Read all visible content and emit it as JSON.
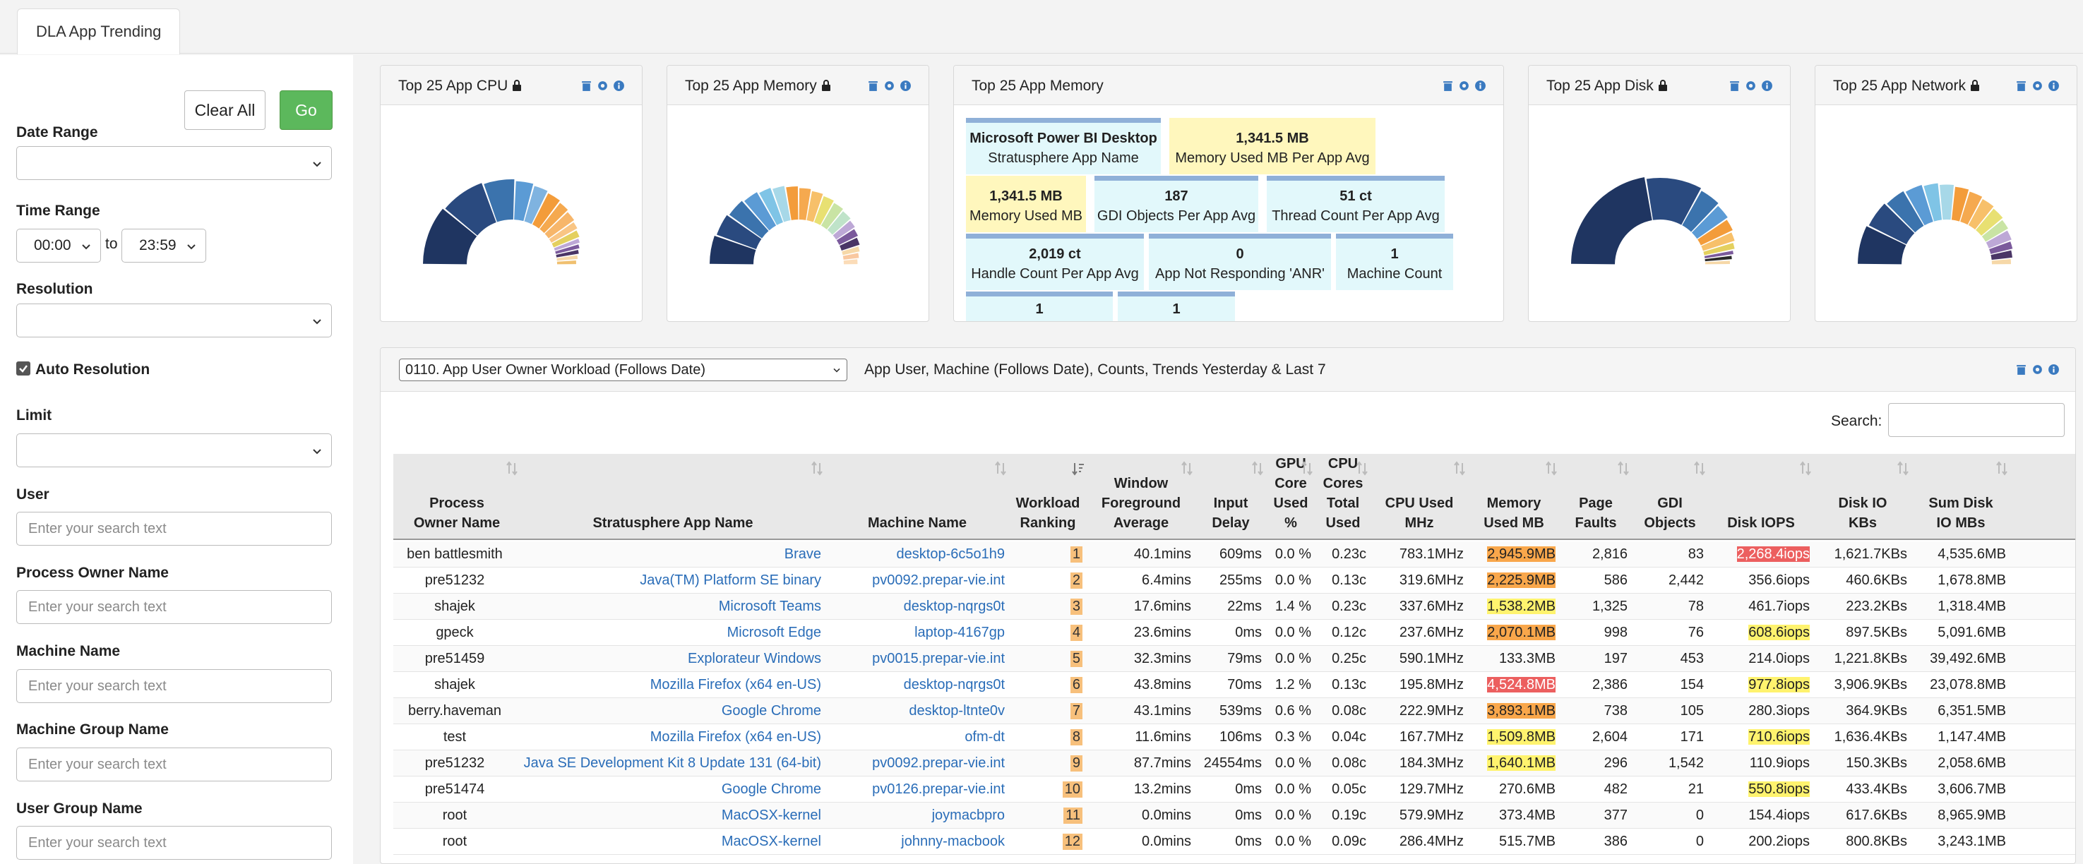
{
  "tab": {
    "label": "DLA App Trending"
  },
  "sidebar": {
    "clear_label": "Clear All",
    "go_label": "Go",
    "date_range_label": "Date Range",
    "time_range_label": "Time Range",
    "time_from": "00:00",
    "time_to_label": "to",
    "time_to": "23:59",
    "resolution_label": "Resolution",
    "auto_resolution_label": "Auto Resolution",
    "limit_label": "Limit",
    "user_label": "User",
    "process_owner_label": "Process Owner Name",
    "machine_name_label": "Machine Name",
    "machine_group_label": "Machine Group Name",
    "user_group_label": "User Group Name",
    "search_placeholder": "Enter your search text"
  },
  "widgets": {
    "cpu_title": "Top 25 App CPU",
    "memory_title": "Top 25 App Memory",
    "memory_card_title": "Top 25 App Memory",
    "disk_title": "Top 25 App Disk",
    "network_title": "Top 25 App Network"
  },
  "memory_card": {
    "app_value": "Microsoft Power BI Desktop",
    "app_label": "Stratusphere App Name",
    "mem_avg_value": "1,341.5 MB",
    "mem_avg_label": "Memory Used MB Per App Avg",
    "mem_value": "1,341.5 MB",
    "mem_label": "Memory Used MB",
    "gdi_value": "187",
    "gdi_label": "GDI Objects Per App Avg",
    "thread_value": "51 ct",
    "thread_label": "Thread Count Per App Avg",
    "handle_value": "2,019 ct",
    "handle_label": "Handle Count Per App Avg",
    "anr_value": "0",
    "anr_label": "App Not Responding 'ANR'",
    "machine_value": "1",
    "machine_label": "Machine Count",
    "extra1_value": "1",
    "extra2_value": "1"
  },
  "report": {
    "selected": "0110. App User Owner Workload (Follows Date)",
    "description": "App User, Machine (Follows Date), Counts, Trends Yesterday & Last 7",
    "search_label": "Search:"
  },
  "table": {
    "headers": [
      "Process\nOwner Name",
      "Stratusphere App Name",
      "Machine Name",
      "Workload\nRanking",
      "Window\nForeground\nAverage",
      "Input\nDelay",
      "GPU\nCore\nUsed\n%",
      "CPU\nCores\nTotal\nUsed",
      "CPU Used\nMHz",
      "Memory\nUsed MB",
      "Page\nFaults",
      "GDI\nObjects",
      "Disk IOPS",
      "Disk IO\nKBs",
      "Sum Disk\nIO MBs"
    ],
    "rows": [
      [
        "ben battlesmith",
        "Brave",
        "desktop-6c5o1h9",
        "1",
        "40.1mins",
        "609ms",
        "0.0 %",
        "0.23c",
        "783.1MHz",
        "2,945.9MB",
        "2,816",
        "83",
        "2,268.4iops",
        "1,621.7KBs",
        "4,535.6MB"
      ],
      [
        "pre51232",
        "Java(TM) Platform SE binary",
        "pv0092.prepar-vie.int",
        "2",
        "6.4mins",
        "255ms",
        "0.0 %",
        "0.13c",
        "319.6MHz",
        "2,225.9MB",
        "586",
        "2,442",
        "356.6iops",
        "460.6KBs",
        "1,678.8MB"
      ],
      [
        "shajek",
        "Microsoft Teams",
        "desktop-nqrgs0t",
        "3",
        "17.6mins",
        "22ms",
        "1.4 %",
        "0.23c",
        "337.6MHz",
        "1,538.2MB",
        "1,325",
        "78",
        "461.7iops",
        "223.2KBs",
        "1,318.4MB"
      ],
      [
        "gpeck",
        "Microsoft Edge",
        "laptop-4167gp",
        "4",
        "23.6mins",
        "0ms",
        "0.0 %",
        "0.12c",
        "237.6MHz",
        "2,070.1MB",
        "998",
        "76",
        "608.6iops",
        "897.5KBs",
        "5,091.6MB"
      ],
      [
        "pre51459",
        "Explorateur Windows",
        "pv0015.prepar-vie.int",
        "5",
        "32.3mins",
        "79ms",
        "0.0 %",
        "0.25c",
        "590.1MHz",
        "133.3MB",
        "197",
        "453",
        "214.0iops",
        "1,221.8KBs",
        "39,492.6MB"
      ],
      [
        "shajek",
        "Mozilla Firefox (x64 en-US)",
        "desktop-nqrgs0t",
        "6",
        "43.8mins",
        "70ms",
        "1.2 %",
        "0.13c",
        "195.8MHz",
        "4,524.8MB",
        "2,386",
        "154",
        "977.8iops",
        "3,906.9KBs",
        "23,078.8MB"
      ],
      [
        "berry.haveman",
        "Google Chrome",
        "desktop-ltnte0v",
        "7",
        "43.1mins",
        "539ms",
        "0.6 %",
        "0.08c",
        "222.9MHz",
        "3,893.1MB",
        "738",
        "105",
        "280.3iops",
        "364.9KBs",
        "6,351.5MB"
      ],
      [
        "test",
        "Mozilla Firefox (x64 en-US)",
        "ofm-dt",
        "8",
        "11.6mins",
        "106ms",
        "0.3 %",
        "0.04c",
        "167.7MHz",
        "1,509.8MB",
        "2,604",
        "171",
        "710.6iops",
        "1,636.4KBs",
        "1,147.4MB"
      ],
      [
        "pre51232",
        "Java SE Development Kit 8 Update 131 (64-bit)",
        "pv0092.prepar-vie.int",
        "9",
        "87.7mins",
        "24554ms",
        "0.0 %",
        "0.08c",
        "184.3MHz",
        "1,640.1MB",
        "296",
        "1,542",
        "110.9iops",
        "150.3KBs",
        "2,058.6MB"
      ],
      [
        "pre51474",
        "Google Chrome",
        "pv0126.prepar-vie.int",
        "10",
        "13.2mins",
        "0ms",
        "0.0 %",
        "0.05c",
        "129.7MHz",
        "270.6MB",
        "482",
        "21",
        "550.8iops",
        "433.4KBs",
        "3,606.7MB"
      ],
      [
        "root",
        "MacOSX-kernel",
        "joymacbpro",
        "11",
        "0.0mins",
        "0ms",
        "0.0 %",
        "0.19c",
        "579.9MHz",
        "373.4MB",
        "377",
        "0",
        "154.4iops",
        "617.6KBs",
        "8,965.9MB"
      ],
      [
        "root",
        "MacOSX-kernel",
        "johnny-macbook",
        "12",
        "0.0mins",
        "0ms",
        "0.0 %",
        "0.09c",
        "286.4MHz",
        "515.7MB",
        "386",
        "0",
        "200.2iops",
        "800.8KBs",
        "3,243.1MB"
      ]
    ],
    "memory_highlight": [
      "orange",
      "orange",
      "yellow",
      "orange",
      "",
      "red",
      "orange",
      "yellow",
      "yellow",
      "",
      "",
      ""
    ],
    "iops_highlight": [
      "red",
      "",
      "",
      "yellow",
      "",
      "yellow",
      "",
      "yellow",
      "",
      "yellow",
      "",
      ""
    ]
  },
  "colors": {
    "go_button": "#5cb85c",
    "link": "#2a6db8",
    "accent_bar": "#8fb0d8"
  }
}
